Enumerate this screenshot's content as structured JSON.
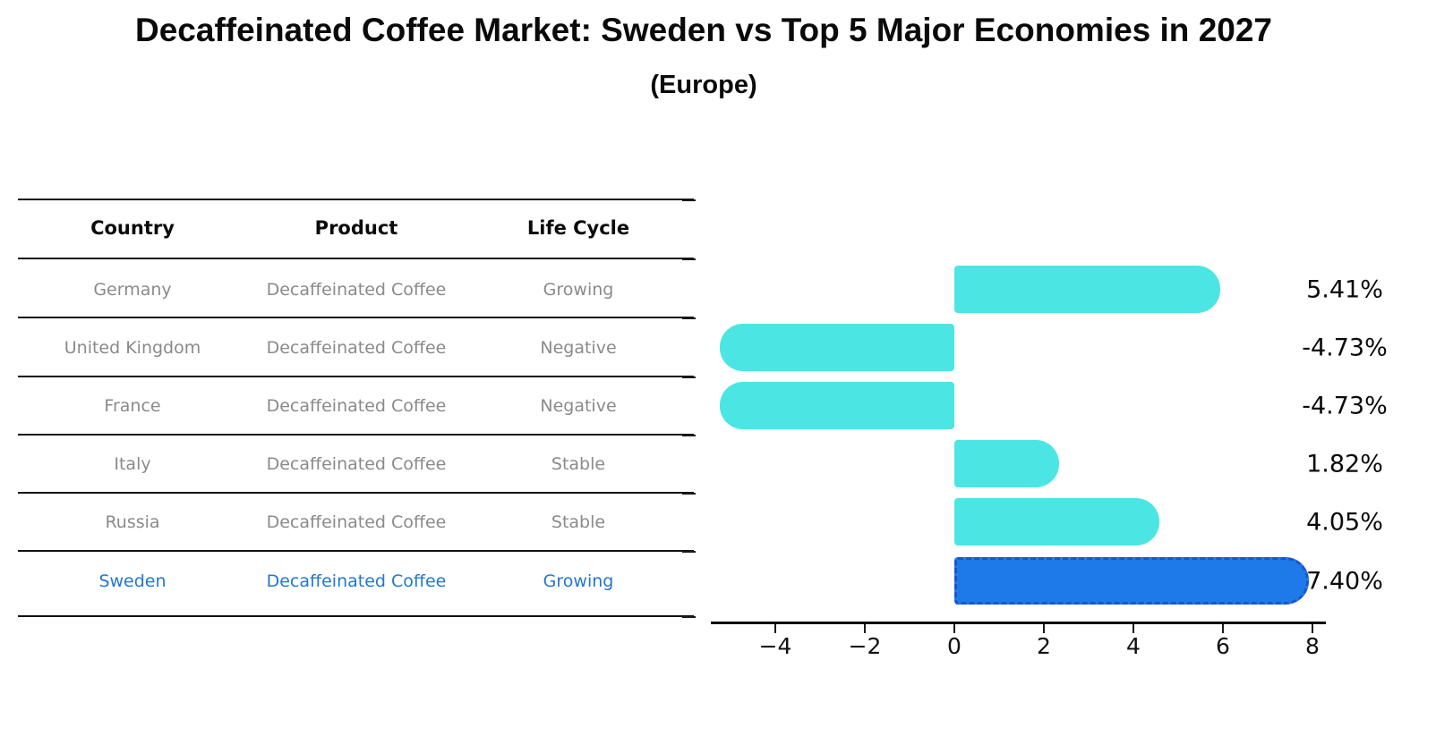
{
  "title": "Decaffeinated Coffee Market: Sweden vs Top 5 Major Economies in 2027",
  "subtitle": "(Europe)",
  "table": {
    "headers": [
      "Country",
      "Product",
      "Life Cycle"
    ],
    "rows": [
      {
        "country": "Germany",
        "product": "Decaffeinated Coffee",
        "life_cycle": "Growing",
        "highlight": false
      },
      {
        "country": "United Kingdom",
        "product": "Decaffeinated Coffee",
        "life_cycle": "Negative",
        "highlight": false
      },
      {
        "country": "France",
        "product": "Decaffeinated Coffee",
        "life_cycle": "Negative",
        "highlight": false
      },
      {
        "country": "Italy",
        "product": "Decaffeinated Coffee",
        "life_cycle": "Stable",
        "highlight": false
      },
      {
        "country": "Russia",
        "product": "Decaffeinated Coffee",
        "life_cycle": "Stable",
        "highlight": false
      },
      {
        "country": "Sweden",
        "product": "Decaffeinated Coffee",
        "life_cycle": "Growing",
        "highlight": true
      }
    ]
  },
  "chart_data": {
    "type": "bar",
    "orientation": "horizontal",
    "title": "Decaffeinated Coffee Market: Sweden vs Top 5 Major Economies in 2027",
    "subtitle": "(Europe)",
    "categories": [
      "Germany",
      "United Kingdom",
      "France",
      "Italy",
      "Russia",
      "Sweden"
    ],
    "values": [
      5.41,
      -4.73,
      -4.73,
      1.82,
      4.05,
      7.4
    ],
    "value_labels": [
      "5.41%",
      "-4.73%",
      "-4.73%",
      "1.82%",
      "4.05%",
      "7.40%"
    ],
    "x_ticks": [
      -4,
      -2,
      0,
      2,
      4,
      6,
      8
    ],
    "x_tick_labels": [
      "−4",
      "−2",
      "0",
      "2",
      "4",
      "6",
      "8"
    ],
    "xlim": [
      -5.44,
      8.3
    ],
    "grid": false,
    "legend": false,
    "highlight_index": 5,
    "colors": {
      "bar": "#4BE6E3",
      "highlight_bar": "#1E7AE8",
      "highlight_edge": "#1B55CC",
      "highlight_text": "#2477CE",
      "muted_text": "#8A8A8A",
      "text": "#0A0A0A"
    }
  }
}
